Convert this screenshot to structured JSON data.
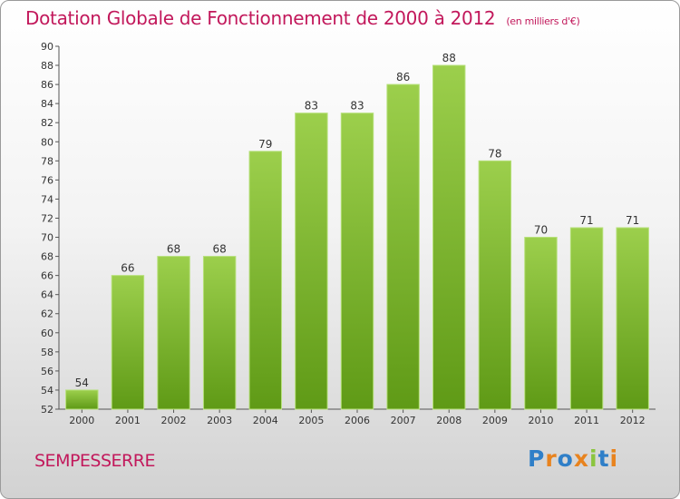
{
  "header": {
    "title": "Dotation Globale de Fonctionnement de 2000 à 2012",
    "subtitle": "(en milliers d'€)"
  },
  "footer": {
    "commune": "SEMPESSERRE",
    "logo": "Proxiti"
  },
  "colors": {
    "title": "#c2185b",
    "bar_light": "#9ccf4c",
    "bar_dark": "#5f9a16",
    "logo_letters": [
      "#2f7fc8",
      "#e8831e",
      "#2f7fc8",
      "#e8831e",
      "#8bc53f",
      "#2f7fc8",
      "#e8831e"
    ]
  },
  "chart_data": {
    "type": "bar",
    "categories": [
      "2000",
      "2001",
      "2002",
      "2003",
      "2004",
      "2005",
      "2006",
      "2007",
      "2008",
      "2009",
      "2010",
      "2011",
      "2012"
    ],
    "values": [
      54,
      66,
      68,
      68,
      79,
      83,
      83,
      86,
      88,
      78,
      70,
      71,
      71
    ],
    "title": "Dotation Globale de Fonctionnement de 2000 à 2012",
    "subtitle": "(en milliers d'€)",
    "xlabel": "",
    "ylabel": "",
    "ylim": [
      52,
      90
    ],
    "yticks": [
      52,
      54,
      56,
      58,
      60,
      62,
      64,
      66,
      68,
      70,
      72,
      74,
      76,
      78,
      80,
      82,
      84,
      86,
      88,
      90
    ],
    "grid": false,
    "data_labels": true
  }
}
